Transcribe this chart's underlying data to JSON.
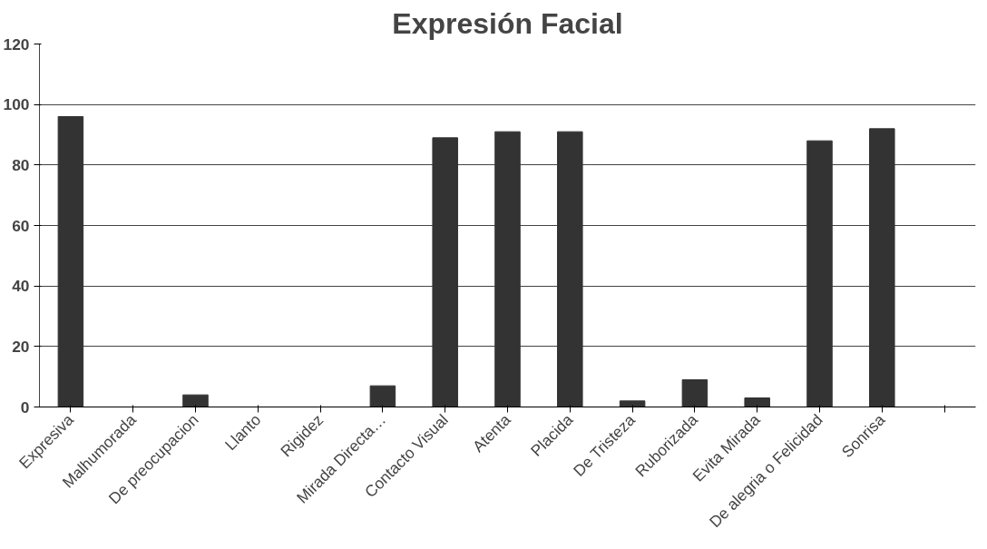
{
  "chart_data": {
    "type": "bar",
    "title": "Expresión Facial",
    "categories": [
      "Expresiva",
      "Malhumorada",
      "De preocupacion",
      "Llanto",
      "Rigidez",
      "Mirada Directa…",
      "Contacto Visual",
      "Atenta",
      "Placida",
      "De Tristeza",
      "Ruborizada",
      "Evita Mirada",
      "De alegria o Felicidad",
      "Sonrisa",
      null
    ],
    "values": [
      96,
      0,
      4,
      0,
      0,
      7,
      89,
      91,
      91,
      2,
      9,
      3,
      88,
      92,
      null
    ],
    "color": "#333333",
    "ylim": [
      0,
      120
    ],
    "yticks": [
      0,
      20,
      40,
      60,
      80,
      100,
      120
    ],
    "grid": "y"
  }
}
